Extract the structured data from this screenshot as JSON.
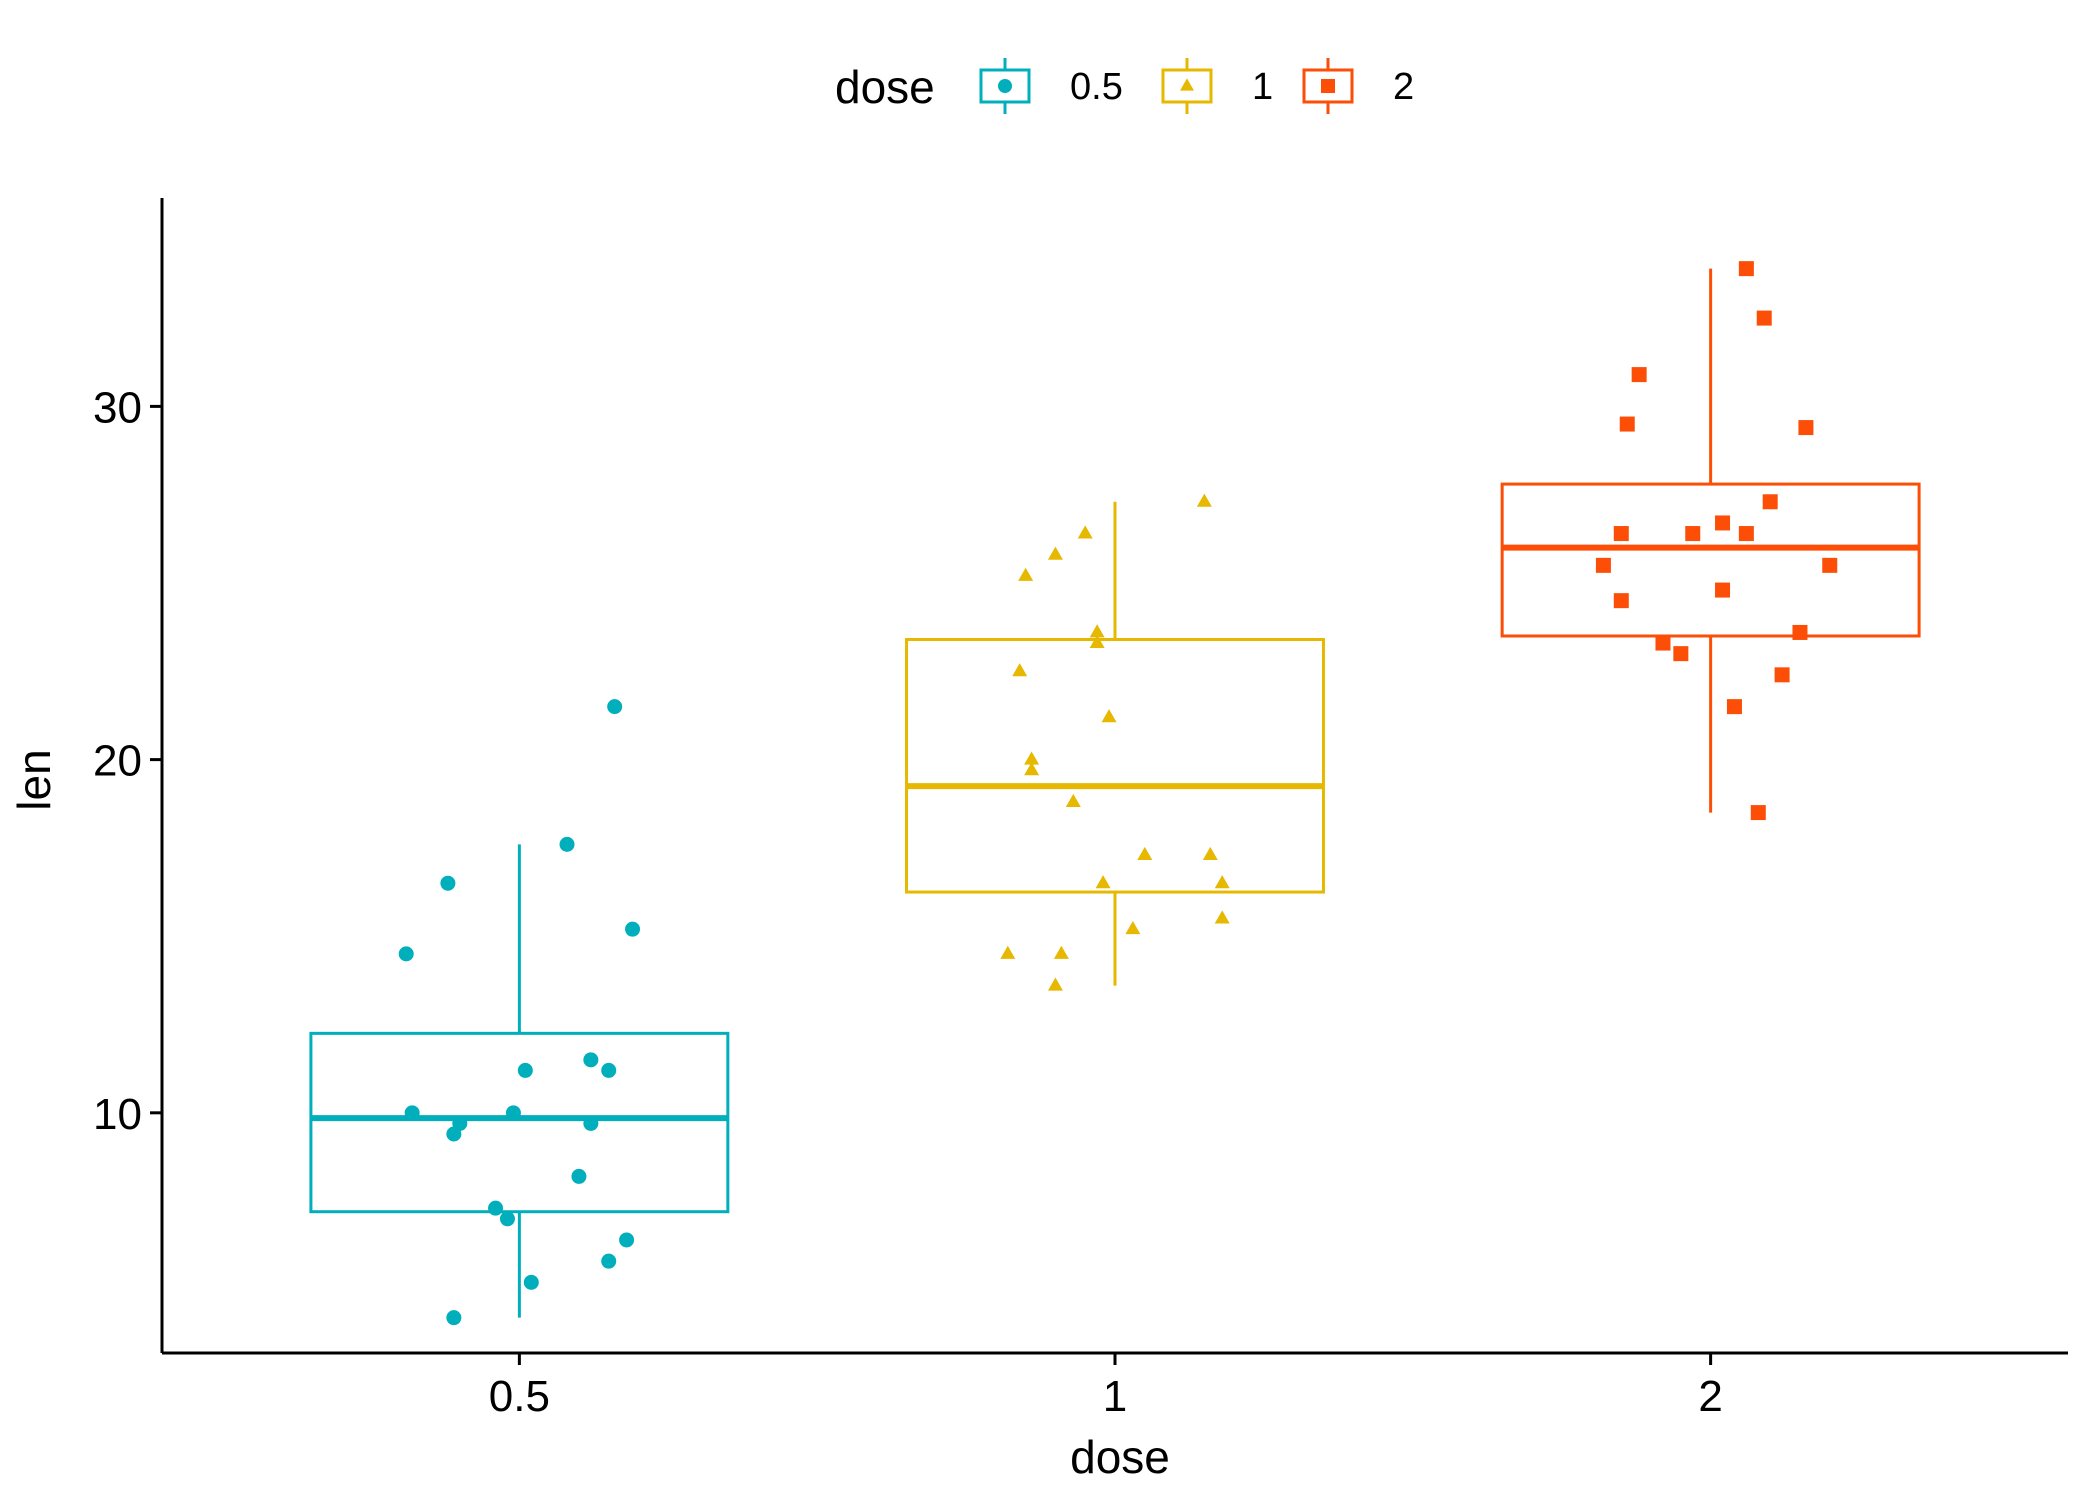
{
  "chart_data": {
    "type": "boxplot",
    "xlabel": "dose",
    "ylabel": "len",
    "ylim": [
      3.2,
      35.9
    ],
    "y_ticks": [
      10,
      20,
      30
    ],
    "y_tick_labels": [
      "10",
      "20",
      "30"
    ],
    "categories": [
      "0.5",
      "1",
      "2"
    ],
    "legend": {
      "title": "dose",
      "position": "top",
      "entries": [
        "0.5",
        "1",
        "2"
      ]
    },
    "groups": [
      {
        "name": "0.5",
        "color": "#00AFBB",
        "shape": "circle",
        "box": {
          "lower_whisker": 4.2,
          "q1": 7.2,
          "median": 9.85,
          "q3": 12.25,
          "upper_whisker": 17.6
        },
        "points": [
          {
            "jitter": -0.19,
            "value": 14.5
          },
          {
            "jitter": -0.18,
            "value": 10.0
          },
          {
            "jitter": -0.12,
            "value": 16.5
          },
          {
            "jitter": -0.11,
            "value": 4.2
          },
          {
            "jitter": -0.11,
            "value": 9.4
          },
          {
            "jitter": -0.1,
            "value": 9.7
          },
          {
            "jitter": -0.04,
            "value": 7.3
          },
          {
            "jitter": -0.02,
            "value": 7.0
          },
          {
            "jitter": -0.01,
            "value": 10.0
          },
          {
            "jitter": 0.01,
            "value": 11.2
          },
          {
            "jitter": 0.02,
            "value": 5.2
          },
          {
            "jitter": 0.08,
            "value": 17.6
          },
          {
            "jitter": 0.1,
            "value": 8.2
          },
          {
            "jitter": 0.12,
            "value": 11.5
          },
          {
            "jitter": 0.12,
            "value": 9.7
          },
          {
            "jitter": 0.15,
            "value": 5.8
          },
          {
            "jitter": 0.15,
            "value": 11.2
          },
          {
            "jitter": 0.16,
            "value": 21.5
          },
          {
            "jitter": 0.18,
            "value": 6.4
          },
          {
            "jitter": 0.19,
            "value": 15.2
          }
        ]
      },
      {
        "name": "1",
        "color": "#E7B800",
        "shape": "triangle",
        "box": {
          "lower_whisker": 13.6,
          "q1": 16.25,
          "median": 19.25,
          "q3": 23.4,
          "upper_whisker": 27.3
        },
        "points": [
          {
            "jitter": -0.18,
            "value": 14.5
          },
          {
            "jitter": -0.16,
            "value": 22.5
          },
          {
            "jitter": -0.15,
            "value": 25.2
          },
          {
            "jitter": -0.14,
            "value": 19.7
          },
          {
            "jitter": -0.14,
            "value": 20.0
          },
          {
            "jitter": -0.1,
            "value": 25.8
          },
          {
            "jitter": -0.1,
            "value": 13.6
          },
          {
            "jitter": -0.09,
            "value": 14.5
          },
          {
            "jitter": -0.07,
            "value": 18.8
          },
          {
            "jitter": -0.05,
            "value": 26.4
          },
          {
            "jitter": -0.03,
            "value": 23.3
          },
          {
            "jitter": -0.03,
            "value": 23.6
          },
          {
            "jitter": -0.02,
            "value": 16.5
          },
          {
            "jitter": -0.01,
            "value": 21.2
          },
          {
            "jitter": 0.03,
            "value": 15.2
          },
          {
            "jitter": 0.05,
            "value": 17.3
          },
          {
            "jitter": 0.15,
            "value": 27.3
          },
          {
            "jitter": 0.16,
            "value": 17.3
          },
          {
            "jitter": 0.18,
            "value": 15.5
          },
          {
            "jitter": 0.18,
            "value": 16.5
          }
        ]
      },
      {
        "name": "2",
        "color": "#FC4E07",
        "shape": "square",
        "box": {
          "lower_whisker": 18.5,
          "q1": 23.5,
          "median": 26.0,
          "q3": 27.8,
          "upper_whisker": 33.9
        },
        "points": [
          {
            "jitter": -0.18,
            "value": 25.5
          },
          {
            "jitter": -0.15,
            "value": 26.4
          },
          {
            "jitter": -0.15,
            "value": 24.5
          },
          {
            "jitter": -0.14,
            "value": 29.5
          },
          {
            "jitter": -0.12,
            "value": 30.9
          },
          {
            "jitter": -0.08,
            "value": 23.3
          },
          {
            "jitter": -0.05,
            "value": 23.0
          },
          {
            "jitter": -0.03,
            "value": 26.4
          },
          {
            "jitter": 0.02,
            "value": 26.7
          },
          {
            "jitter": 0.02,
            "value": 24.8
          },
          {
            "jitter": 0.04,
            "value": 21.5
          },
          {
            "jitter": 0.06,
            "value": 26.4
          },
          {
            "jitter": 0.06,
            "value": 33.9
          },
          {
            "jitter": 0.08,
            "value": 18.5
          },
          {
            "jitter": 0.09,
            "value": 32.5
          },
          {
            "jitter": 0.1,
            "value": 27.3
          },
          {
            "jitter": 0.12,
            "value": 22.4
          },
          {
            "jitter": 0.15,
            "value": 23.6
          },
          {
            "jitter": 0.16,
            "value": 29.4
          },
          {
            "jitter": 0.2,
            "value": 25.5
          }
        ]
      }
    ]
  }
}
